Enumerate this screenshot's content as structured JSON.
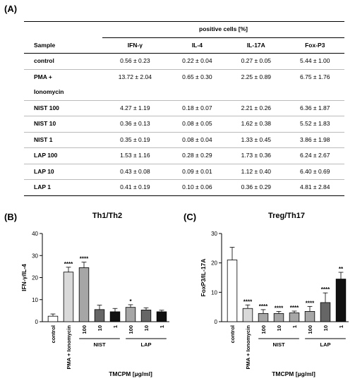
{
  "panel_a": {
    "label": "(A)",
    "group_header": "positive cells [%]",
    "columns": [
      "Sample",
      "IFN-γ",
      "IL-4",
      "IL-17A",
      "Fox-P3"
    ],
    "rows": [
      {
        "sample": "control",
        "ifng": "0.56 ± 0.23",
        "il4": "0.22 ± 0.04",
        "il17a": "0.27 ± 0.05",
        "foxp3": "5.44 ± 1.00"
      },
      {
        "sample": "PMA +",
        "ifng": "13.72 ± 2.04",
        "il4": "0.65 ± 0.30",
        "il17a": "2.25 ± 0.89",
        "foxp3": "6.75 ± 1.76"
      },
      {
        "sample": "Ionomycin",
        "ifng": "",
        "il4": "",
        "il17a": "",
        "foxp3": ""
      },
      {
        "sample": "NIST 100",
        "ifng": "4.27 ± 1.19",
        "il4": "0.18 ± 0.07",
        "il17a": "2.21 ± 0.26",
        "foxp3": "6.36 ± 1.87"
      },
      {
        "sample": "NIST 10",
        "ifng": "0.36 ± 0.13",
        "il4": "0.08 ± 0.05",
        "il17a": "1.62 ± 0.38",
        "foxp3": "5.52 ± 1.83"
      },
      {
        "sample": "NIST 1",
        "ifng": "0.35 ± 0.19",
        "il4": "0.08 ± 0.04",
        "il17a": "1.33 ± 0.45",
        "foxp3": "3.86 ± 1.98"
      },
      {
        "sample": "LAP 100",
        "ifng": "1.53 ± 1.16",
        "il4": "0.28 ± 0.29",
        "il17a": "1.73 ± 0.36",
        "foxp3": "6.24 ± 2.67"
      },
      {
        "sample": "LAP 10",
        "ifng": "0.43 ± 0.08",
        "il4": "0.09 ± 0.01",
        "il17a": "1.12 ± 0.40",
        "foxp3": "6.40 ± 0.69"
      },
      {
        "sample": "LAP 1",
        "ifng": "0.41 ± 0.19",
        "il4": "0.10 ± 0.06",
        "il17a": "0.36 ± 0.29",
        "foxp3": "4.81 ± 2.84"
      }
    ]
  },
  "panel_b_label": "(B)",
  "panel_c_label": "(C)",
  "chart_data": [
    {
      "type": "bar",
      "title": "Th1/Th2",
      "ylabel": "IFN-γ/IL-4",
      "xlabel": "TMCPM   [µg/ml]",
      "ylim": [
        0,
        40
      ],
      "yticks": [
        "0",
        "10",
        "20",
        "30",
        "40"
      ],
      "categories": [
        "control",
        "PMA + Ionomycin",
        "100",
        "10",
        "1",
        "100",
        "10",
        "1"
      ],
      "values": [
        2.5,
        22.5,
        24.5,
        5.5,
        4.5,
        6.5,
        5.3,
        4.5
      ],
      "errors": [
        1.0,
        2.2,
        2.5,
        2.0,
        1.5,
        1.2,
        1.0,
        0.7
      ],
      "significance": [
        "",
        "****",
        "****",
        "",
        "",
        "*",
        "",
        ""
      ],
      "fills": [
        "#ffffff",
        "#d9d9d9",
        "#a6a6a6",
        "#666666",
        "#111111",
        "#a6a6a6",
        "#666666",
        "#111111"
      ],
      "groups": [
        {
          "label": "NIST",
          "from": 2,
          "to": 4
        },
        {
          "label": "LAP",
          "from": 5,
          "to": 7
        }
      ],
      "grid": false
    },
    {
      "type": "bar",
      "title": "Treg/Th17",
      "ylabel": "FoxP3/IL-17A",
      "xlabel": "TMCPM   [µg/ml]",
      "ylim": [
        0,
        30
      ],
      "yticks": [
        "0",
        "10",
        "20",
        "30"
      ],
      "categories": [
        "control",
        "PMA + Ionomycin",
        "100",
        "10",
        "1",
        "100",
        "10",
        "1"
      ],
      "values": [
        21,
        4.5,
        2.8,
        2.8,
        3.0,
        3.5,
        6.5,
        14.5
      ],
      "errors": [
        4.3,
        1.2,
        1.3,
        0.7,
        0.6,
        1.7,
        3.3,
        2.3
      ],
      "significance": [
        "",
        "****",
        "****",
        "****",
        "****",
        "****",
        "****",
        "**"
      ],
      "fills": [
        "#ffffff",
        "#d9d9d9",
        "#a6a6a6",
        "#a6a6a6",
        "#a6a6a6",
        "#a6a6a6",
        "#666666",
        "#111111"
      ],
      "groups": [
        {
          "label": "NIST",
          "from": 2,
          "to": 4
        },
        {
          "label": "LAP",
          "from": 5,
          "to": 7
        }
      ],
      "grid": false
    }
  ]
}
